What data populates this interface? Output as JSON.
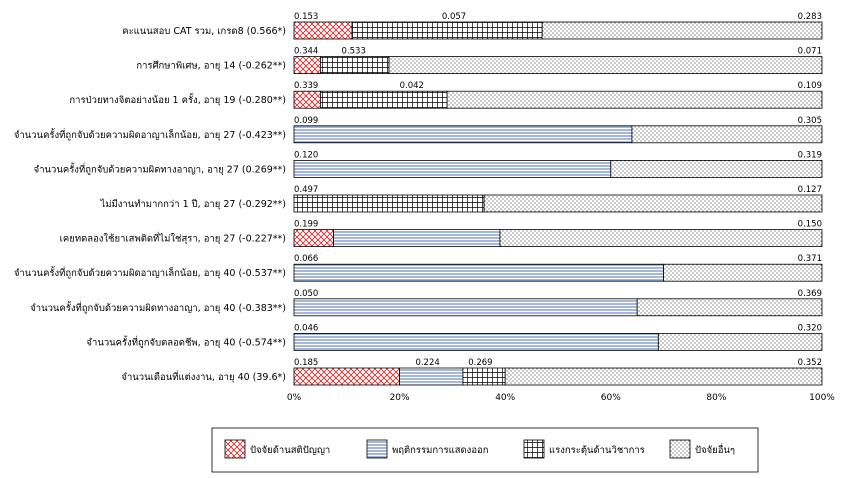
{
  "chart_data": {
    "type": "bar",
    "stacked": "percent",
    "orientation": "horizontal",
    "title": "",
    "xlabel": "",
    "ylabel": "",
    "xlim": [
      0,
      100
    ],
    "x_ticks": [
      "0%",
      "20%",
      "40%",
      "60%",
      "80%",
      "100%"
    ],
    "legend_position": "bottom",
    "grid": false,
    "categories": [
      "คะแนนสอบ CAT รวม, เกรด8 (0.566*)",
      "การศึกษาพิเศษ, อายุ 14 (-0.262**)",
      "การป่วยทางจิตอย่างน้อย 1 ครั้ง, อายุ 19 (-0.280**)",
      "จำนวนครั้งที่ถูกจับด้วยความผิดอาญาเล็กน้อย, อายุ 27 (-0.423**)",
      "จำนวนครั้งที่ถูกจับด้วยความผิดทางอาญา, อายุ 27 (0.269**)",
      "ไม่มีงานทำมากกว่า 1 ปี, อายุ 27 (-0.292**)",
      "เคยทดลองใช้ยาเสพติดที่ไม่ใช่สุรา, อายุ 27 (-0.227**)",
      "จำนวนครั้งที่ถูกจับด้วยความผิดอาญาเล็กน้อย, อายุ 40 (-0.537**)",
      "จำนวนครั้งที่ถูกจับด้วยความผิดทางอาญา, อายุ 40 (-0.383**)",
      "จำนวนครั้งที่ถูกจับตลอดชีพ, อายุ 40 (-0.574**)",
      "จำนวนเดือนที่แต่งงาน, อายุ 40 (39.6*)"
    ],
    "series": [
      {
        "name": "ปัจจัยด้านสติปัญญา",
        "pattern": "crosshatch",
        "color": "#e02020",
        "values": [
          0.153,
          0.344,
          0.339,
          null,
          null,
          null,
          0.199,
          null,
          null,
          null,
          0.185
        ]
      },
      {
        "name": "พฤติกรรมการแสดงออก",
        "pattern": "horizontal-lines",
        "color": "#1f4e9c",
        "values": [
          null,
          null,
          null,
          0.099,
          0.12,
          null,
          null,
          0.066,
          0.05,
          0.046,
          0.224
        ]
      },
      {
        "name": "แรงกระตุ้นด้านวิชาการ",
        "pattern": "grid",
        "color": "#000000",
        "values": [
          0.057,
          0.533,
          0.042,
          null,
          null,
          0.497,
          null,
          null,
          null,
          null,
          0.269
        ]
      },
      {
        "name": "ปัจจัยอื่นๆ",
        "pattern": "dots",
        "color": "#000000",
        "values": [
          0.283,
          0.071,
          0.109,
          0.305,
          0.319,
          0.127,
          0.15,
          0.371,
          0.369,
          0.32,
          0.352
        ]
      }
    ],
    "segments": [
      [
        {
          "s": 0,
          "from": 0,
          "to": 11
        },
        {
          "s": 2,
          "from": 11,
          "to": 47
        },
        {
          "s": 3,
          "from": 47,
          "to": 100
        }
      ],
      [
        {
          "s": 0,
          "from": 0,
          "to": 5
        },
        {
          "s": 2,
          "from": 5,
          "to": 18
        },
        {
          "s": 3,
          "from": 18,
          "to": 100
        }
      ],
      [
        {
          "s": 0,
          "from": 0,
          "to": 5
        },
        {
          "s": 2,
          "from": 5,
          "to": 29
        },
        {
          "s": 3,
          "from": 29,
          "to": 100
        }
      ],
      [
        {
          "s": 1,
          "from": 0,
          "to": 64
        },
        {
          "s": 3,
          "from": 64,
          "to": 100
        }
      ],
      [
        {
          "s": 1,
          "from": 0,
          "to": 60
        },
        {
          "s": 3,
          "from": 60,
          "to": 100
        }
      ],
      [
        {
          "s": 2,
          "from": 0,
          "to": 36
        },
        {
          "s": 3,
          "from": 36,
          "to": 100
        }
      ],
      [
        {
          "s": 0,
          "from": 0,
          "to": 7.5
        },
        {
          "s": 1,
          "from": 7.5,
          "to": 39
        },
        {
          "s": 3,
          "from": 39,
          "to": 100
        }
      ],
      [
        {
          "s": 1,
          "from": 0,
          "to": 70
        },
        {
          "s": 3,
          "from": 70,
          "to": 100
        }
      ],
      [
        {
          "s": 1,
          "from": 0,
          "to": 65
        },
        {
          "s": 3,
          "from": 65,
          "to": 100
        }
      ],
      [
        {
          "s": 1,
          "from": 0,
          "to": 69
        },
        {
          "s": 3,
          "from": 69,
          "to": 100
        }
      ],
      [
        {
          "s": 0,
          "from": 0,
          "to": 20
        },
        {
          "s": 1,
          "from": 20,
          "to": 32
        },
        {
          "s": 2,
          "from": 32,
          "to": 40
        },
        {
          "s": 3,
          "from": 40,
          "to": 100
        }
      ]
    ],
    "value_labels": [
      [
        {
          "text": "0.153",
          "at": 0
        },
        {
          "text": "0.057",
          "at": 28
        },
        {
          "text": "0.283",
          "at": 100
        }
      ],
      [
        {
          "text": "0.344",
          "at": 0
        },
        {
          "text": "0.533",
          "at": 9
        },
        {
          "text": "0.071",
          "at": 100
        }
      ],
      [
        {
          "text": "0.339",
          "at": 0
        },
        {
          "text": "0.042",
          "at": 20
        },
        {
          "text": "0.109",
          "at": 100
        }
      ],
      [
        {
          "text": "0.099",
          "at": 0
        },
        {
          "text": "0.305",
          "at": 100
        }
      ],
      [
        {
          "text": "0.120",
          "at": 0
        },
        {
          "text": "0.319",
          "at": 100
        }
      ],
      [
        {
          "text": "0.497",
          "at": 0
        },
        {
          "text": "0.127",
          "at": 100
        }
      ],
      [
        {
          "text": "0.199",
          "at": 0
        },
        {
          "text": "0.150",
          "at": 100
        }
      ],
      [
        {
          "text": "0.066",
          "at": 0
        },
        {
          "text": "0.371",
          "at": 100
        }
      ],
      [
        {
          "text": "0.050",
          "at": 0
        },
        {
          "text": "0.369",
          "at": 100
        }
      ],
      [
        {
          "text": "0.046",
          "at": 0
        },
        {
          "text": "0.320",
          "at": 100
        }
      ],
      [
        {
          "text": "0.185",
          "at": 0
        },
        {
          "text": "0.224",
          "at": 23
        },
        {
          "text": "0.269",
          "at": 33
        },
        {
          "text": "0.352",
          "at": 100
        }
      ]
    ]
  }
}
